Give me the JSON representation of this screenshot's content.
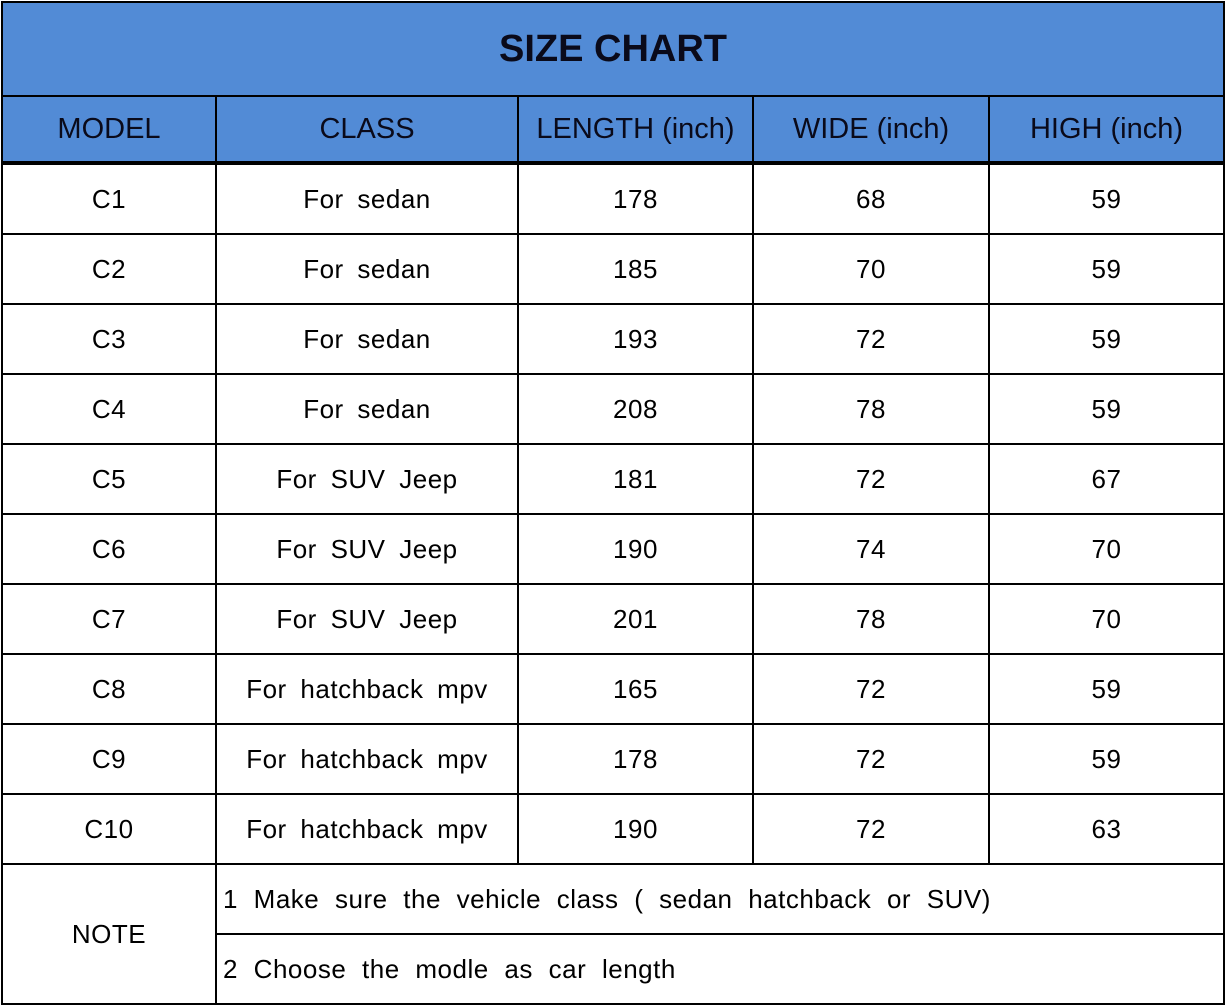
{
  "title": "SIZE CHART",
  "headers": [
    "MODEL",
    "CLASS",
    "LENGTH (inch)",
    "WIDE (inch)",
    "HIGH (inch)"
  ],
  "header_color": "#528bd6",
  "rows": [
    [
      "C1",
      "For sedan",
      "178",
      "68",
      "59"
    ],
    [
      "C2",
      "For sedan",
      "185",
      "70",
      "59"
    ],
    [
      "C3",
      "For sedan",
      "193",
      "72",
      "59"
    ],
    [
      "C4",
      "For sedan",
      "208",
      "78",
      "59"
    ],
    [
      "C5",
      "For SUV Jeep",
      "181",
      "72",
      "67"
    ],
    [
      "C6",
      "For SUV Jeep",
      "190",
      "74",
      "70"
    ],
    [
      "C7",
      "For SUV Jeep",
      "201",
      "78",
      "70"
    ],
    [
      "C8",
      "For hatchback mpv",
      "165",
      "72",
      "59"
    ],
    [
      "C9",
      "For hatchback mpv",
      "178",
      "72",
      "59"
    ],
    [
      "C10",
      "For hatchback mpv",
      "190",
      "72",
      "63"
    ]
  ],
  "note": {
    "label": "NOTE",
    "items": [
      "1 Make sure the vehicle class ( sedan hatchback or SUV)",
      "2 Choose the modle as car length"
    ]
  }
}
